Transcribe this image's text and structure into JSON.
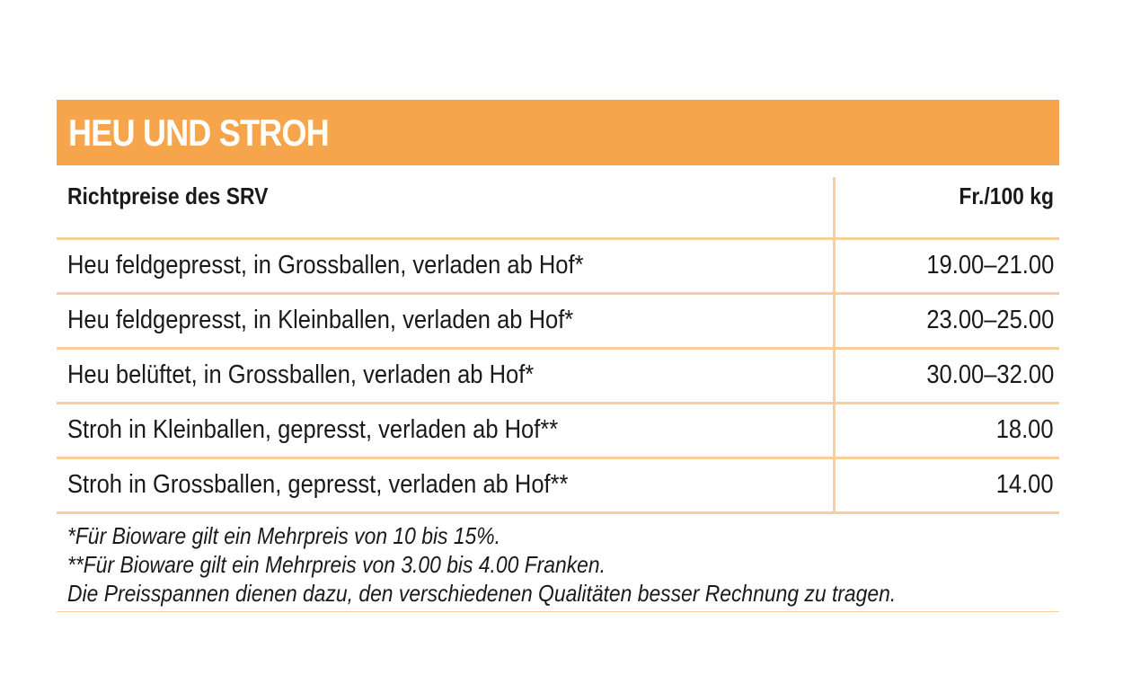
{
  "title": "HEU UND STROH",
  "colors": {
    "accent": "#f6a54c",
    "rule": "#f8cf9c",
    "title_text": "#ffffff"
  },
  "table": {
    "header": {
      "description": "Richtpreise des SRV",
      "unit": "Fr./100 kg"
    },
    "rows": [
      {
        "description": "Heu feldgepresst, in Grossballen, verladen ab Hof*",
        "price": "19.00–21.00"
      },
      {
        "description": "Heu feldgepresst, in Kleinballen, verladen ab Hof*",
        "price": "23.00–25.00"
      },
      {
        "description": "Heu belüftet, in Grossballen, verladen ab Hof*",
        "price": "30.00–32.00"
      },
      {
        "description": "Stroh in Kleinballen, gepresst, verladen ab Hof**",
        "price": "18.00"
      },
      {
        "description": "Stroh in Grossballen, gepresst, verladen ab Hof**",
        "price": "14.00"
      }
    ]
  },
  "notes": [
    "*Für Bioware gilt ein Mehrpreis von 10 bis 15%.",
    "**Für Bioware gilt ein Mehrpreis von 3.00 bis 4.00 Franken.",
    "Die Preisspannen dienen dazu, den verschiedenen Qualitäten besser Rechnung zu tragen."
  ]
}
